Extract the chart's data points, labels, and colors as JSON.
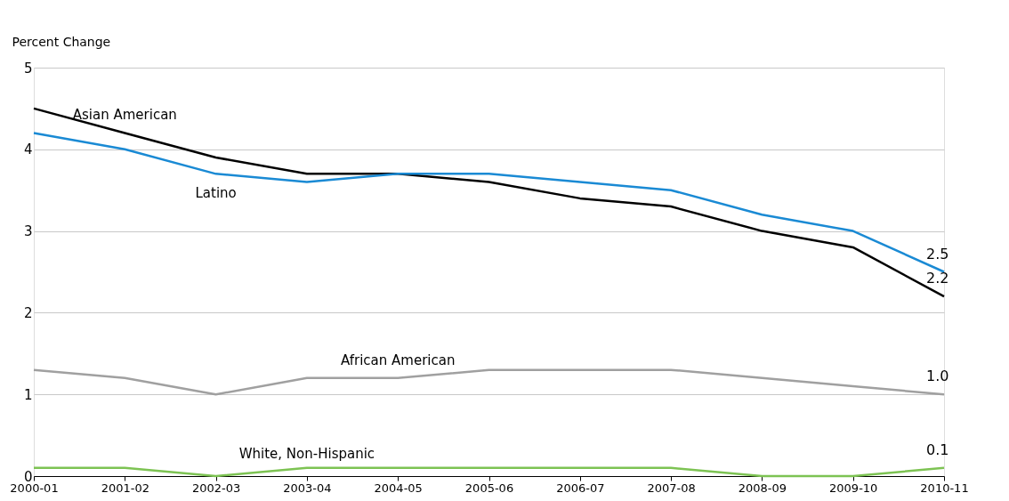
{
  "chart_data": {
    "type": "line",
    "ylabel": "Percent Change",
    "categories": [
      "2000-01",
      "2001-02",
      "2002-03",
      "2003-04",
      "2004-05",
      "2005-06",
      "2006-07",
      "2007-08",
      "2008-09",
      "2009-10",
      "2010-11"
    ],
    "series": [
      {
        "name": "Asian American",
        "color": "#000000",
        "values": [
          4.5,
          4.2,
          3.9,
          3.7,
          3.7,
          3.6,
          3.4,
          3.3,
          3.0,
          2.8,
          2.2
        ],
        "value_labels": [
          null,
          null,
          null,
          null,
          null,
          null,
          null,
          null,
          null,
          null,
          "2.2"
        ]
      },
      {
        "name": "Latino",
        "color": "#1a8ad4",
        "values": [
          4.2,
          4.0,
          3.7,
          3.6,
          3.7,
          3.7,
          3.6,
          3.5,
          3.2,
          3.0,
          2.5
        ],
        "value_labels": [
          null,
          null,
          null,
          null,
          null,
          null,
          null,
          null,
          null,
          null,
          "2.5"
        ]
      },
      {
        "name": "African American",
        "color": "#a0a0a0",
        "values": [
          1.3,
          1.2,
          1.0,
          1.2,
          1.2,
          1.3,
          1.3,
          1.3,
          1.2,
          1.1,
          1.0
        ],
        "value_labels": [
          null,
          null,
          null,
          null,
          null,
          null,
          null,
          null,
          null,
          null,
          "1.0"
        ]
      },
      {
        "name": "White, Non-Hispanic",
        "color": "#7dc353",
        "values": [
          0.1,
          0.1,
          0.0,
          0.1,
          0.1,
          0.1,
          0.1,
          0.1,
          0.0,
          0.0,
          0.1
        ],
        "value_labels": [
          null,
          null,
          null,
          null,
          null,
          null,
          null,
          null,
          null,
          null,
          "0.1"
        ]
      }
    ],
    "ylim": [
      0,
      5
    ],
    "yticks": [
      0,
      1,
      2,
      3,
      4,
      5
    ],
    "grid": "y",
    "legend": false,
    "marker": "none",
    "line_style": "solid"
  }
}
